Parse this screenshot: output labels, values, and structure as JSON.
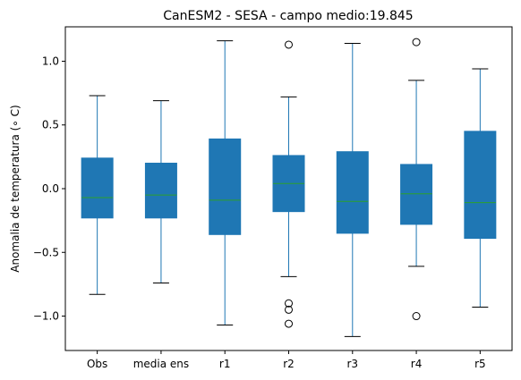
{
  "chart_data": {
    "type": "box",
    "title": "CanESM2 - SESA - campo medio:19.845",
    "xlabel": "",
    "ylabel": "Anomalia de temperatura (∘ C)",
    "ylim": [
      -1.27,
      1.27
    ],
    "yticks": [
      -1.0,
      -0.5,
      0.0,
      0.5,
      1.0
    ],
    "ytick_labels": [
      "−1.0",
      "−0.5",
      "0.0",
      "0.5",
      "1.0"
    ],
    "grid": false,
    "categories": [
      "Obs",
      "media ens",
      "r1",
      "r2",
      "r3",
      "r4",
      "r5"
    ],
    "boxes": [
      {
        "label": "Obs",
        "whislo": -0.83,
        "q1": -0.23,
        "med": -0.07,
        "q3": 0.24,
        "whishi": 0.73,
        "fliers": []
      },
      {
        "label": "media ens",
        "whislo": -0.74,
        "q1": -0.23,
        "med": -0.05,
        "q3": 0.2,
        "whishi": 0.69,
        "fliers": []
      },
      {
        "label": "r1",
        "whislo": -1.07,
        "q1": -0.36,
        "med": -0.09,
        "q3": 0.39,
        "whishi": 1.16,
        "fliers": []
      },
      {
        "label": "r2",
        "whislo": -0.69,
        "q1": -0.18,
        "med": 0.04,
        "q3": 0.26,
        "whishi": 0.72,
        "fliers": [
          1.13,
          -0.9,
          -0.95,
          -1.06
        ]
      },
      {
        "label": "r3",
        "whislo": -1.16,
        "q1": -0.35,
        "med": -0.1,
        "q3": 0.29,
        "whishi": 1.14,
        "fliers": []
      },
      {
        "label": "r4",
        "whislo": -0.61,
        "q1": -0.28,
        "med": -0.04,
        "q3": 0.19,
        "whishi": 0.85,
        "fliers": [
          1.15,
          -1.0
        ]
      },
      {
        "label": "r5",
        "whislo": -0.93,
        "q1": -0.39,
        "med": -0.11,
        "q3": 0.45,
        "whishi": 0.94,
        "fliers": []
      }
    ],
    "colors": {
      "box_fill": "#1f77b4",
      "whisker": "#1f77b4",
      "cap": "#000000",
      "median": "#2ca02c",
      "flier_edge": "#000000"
    }
  }
}
